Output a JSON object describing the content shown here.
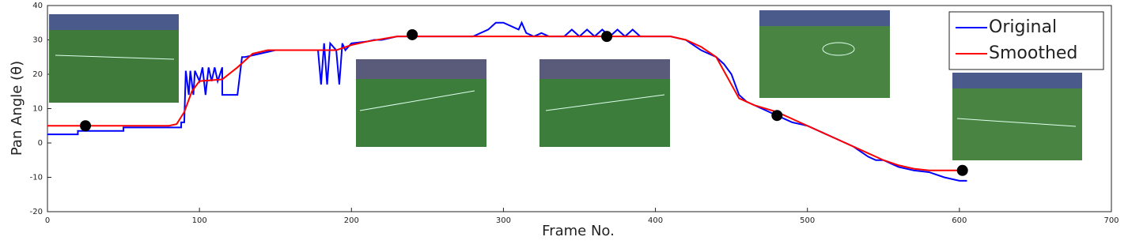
{
  "chart_data": {
    "type": "line",
    "xlabel": "Frame No.",
    "ylabel": "Pan Angle (θ)",
    "xlim": [
      0,
      700
    ],
    "xticks": [
      0,
      100,
      200,
      300,
      400,
      500,
      600,
      700
    ],
    "ylim": [
      -20,
      40
    ],
    "yticks": [
      -20,
      -10,
      0,
      10,
      20,
      30,
      40
    ],
    "legend": "top-right",
    "series": [
      {
        "name": "Original",
        "color": "#0000ff",
        "x": [
          0,
          20,
          20,
          50,
          50,
          88,
          88,
          90,
          91,
          93,
          94,
          96,
          97,
          100,
          102,
          104,
          106,
          108,
          110,
          112,
          115,
          115,
          125,
          128,
          130,
          140,
          150,
          178,
          180,
          182,
          184,
          186,
          190,
          192,
          194,
          196,
          200,
          210,
          215,
          220,
          230,
          260,
          280,
          290,
          295,
          300,
          310,
          312,
          315,
          320,
          325,
          330,
          340,
          345,
          350,
          355,
          360,
          365,
          370,
          375,
          380,
          385,
          390,
          400,
          410,
          420,
          430,
          440,
          445,
          450,
          455,
          460,
          465,
          470,
          475,
          480,
          485,
          490,
          495,
          500,
          510,
          520,
          530,
          540,
          545,
          550,
          555,
          560,
          570,
          580,
          590,
          600,
          605
        ],
        "values": [
          2.5,
          2.5,
          3.5,
          3.5,
          4.5,
          4.5,
          6,
          6,
          21,
          14,
          21,
          14,
          21,
          18,
          22,
          14,
          22,
          18,
          22,
          18,
          22,
          14,
          14,
          25,
          25,
          26,
          27,
          27,
          17,
          29,
          17,
          29,
          27,
          17,
          29,
          27,
          29,
          29.5,
          30,
          30,
          31,
          31,
          31,
          33,
          35,
          35,
          33,
          35,
          32,
          31,
          32,
          31,
          31,
          33,
          31,
          33,
          31,
          33,
          31,
          33,
          31,
          33,
          31,
          31,
          31,
          30,
          27,
          25,
          23,
          20,
          14,
          12,
          11,
          10,
          9,
          8,
          7,
          6,
          5.5,
          5,
          3,
          1,
          -1,
          -4,
          -5,
          -5,
          -6,
          -7,
          -8,
          -8.5,
          -10,
          -11,
          -11
        ]
      },
      {
        "name": "Smoothed",
        "color": "#ff0000",
        "x": [
          0,
          80,
          85,
          90,
          95,
          100,
          115,
          125,
          135,
          145,
          190,
          200,
          210,
          230,
          410,
          420,
          430,
          440,
          445,
          450,
          455,
          465,
          480,
          500,
          520,
          540,
          550,
          560,
          570,
          580,
          600
        ],
        "values": [
          5,
          5,
          5.5,
          9,
          15,
          18,
          18.5,
          22,
          26,
          27,
          27,
          28.5,
          29.5,
          31,
          31,
          30,
          28,
          25,
          21,
          17,
          13,
          11,
          9,
          5,
          1,
          -3,
          -5,
          -6.5,
          -7.5,
          -8,
          -8
        ]
      }
    ],
    "keyframes": {
      "color": "#000000",
      "x": [
        25,
        240,
        368,
        480,
        602
      ],
      "y": [
        5,
        31.5,
        31,
        8,
        -8
      ]
    }
  }
}
